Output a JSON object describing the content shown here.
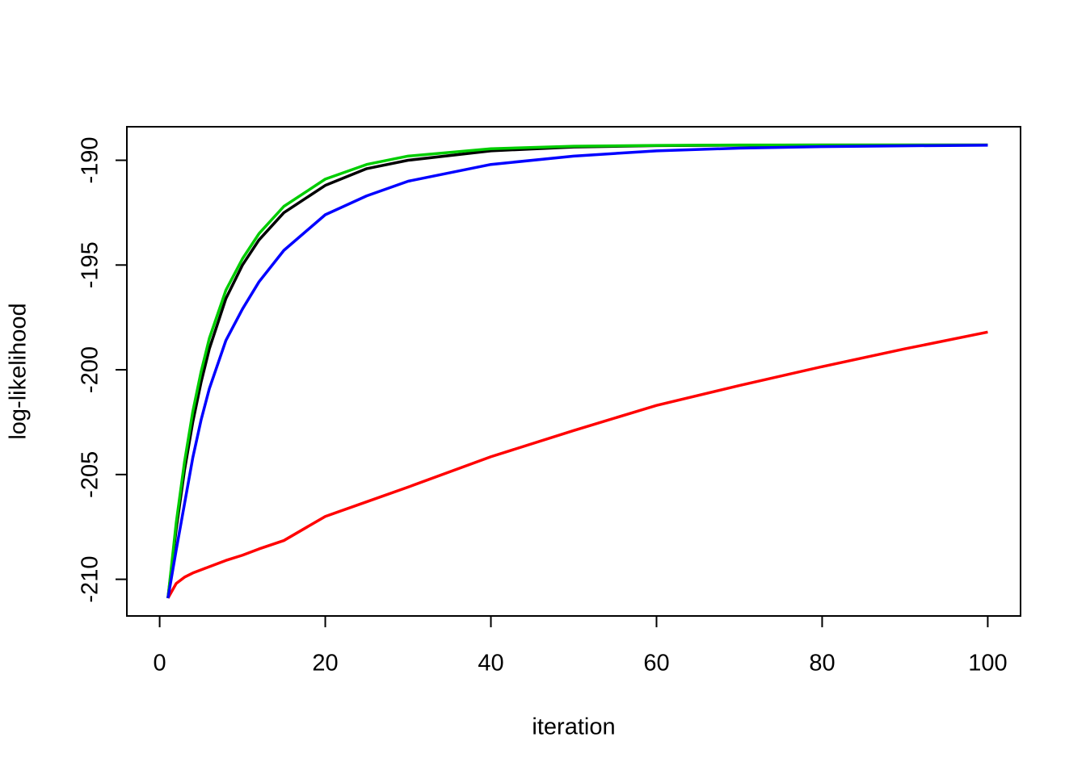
{
  "chart_data": {
    "type": "line",
    "x_label": "iteration",
    "y_label": "log-likelihood",
    "x": [
      1,
      2,
      3,
      4,
      5,
      6,
      8,
      10,
      12,
      15,
      20,
      25,
      30,
      40,
      50,
      60,
      70,
      80,
      90,
      100
    ],
    "series": [
      {
        "color": "#000000",
        "values": [
          -210.9,
          -207.6,
          -204.8,
          -202.5,
          -200.6,
          -199.0,
          -196.6,
          -195.0,
          -193.8,
          -192.5,
          -191.2,
          -190.4,
          -190.0,
          -189.55,
          -189.37,
          -189.3,
          -189.28,
          -189.27,
          -189.27,
          -189.27
        ]
      },
      {
        "color": "#ff0000",
        "values": [
          -210.9,
          -210.2,
          -209.9,
          -209.7,
          -209.55,
          -209.4,
          -209.1,
          -208.85,
          -208.55,
          -208.15,
          -207.0,
          -206.3,
          -205.6,
          -204.15,
          -202.9,
          -201.7,
          -200.75,
          -199.85,
          -199.0,
          -198.2
        ]
      },
      {
        "color": "#00cd00",
        "values": [
          -210.9,
          -207.3,
          -204.4,
          -202.0,
          -200.1,
          -198.5,
          -196.2,
          -194.7,
          -193.5,
          -192.2,
          -190.9,
          -190.2,
          -189.8,
          -189.45,
          -189.33,
          -189.29,
          -189.27,
          -189.27,
          -189.27,
          -189.27
        ]
      },
      {
        "color": "#0000ff",
        "values": [
          -210.9,
          -208.6,
          -206.4,
          -204.2,
          -202.4,
          -200.9,
          -198.6,
          -197.1,
          -195.8,
          -194.3,
          -192.6,
          -191.7,
          -191.0,
          -190.2,
          -189.8,
          -189.55,
          -189.42,
          -189.35,
          -189.31,
          -189.28
        ]
      }
    ],
    "xlim": [
      -3.96,
      103.96
    ],
    "ylim": [
      -211.75,
      -188.4
    ],
    "xticks": [
      0,
      20,
      40,
      60,
      80,
      100
    ],
    "yticks": [
      -210,
      -205,
      -200,
      -195,
      -190
    ],
    "grid": false
  }
}
